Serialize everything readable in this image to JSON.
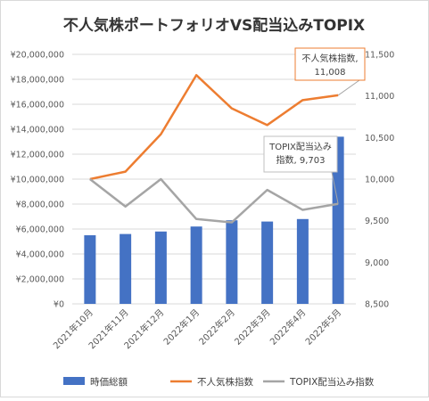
{
  "chart_data": {
    "type": "bar+line",
    "title": "不人気株ポートフォリオVS配当込みTOPIX",
    "categories": [
      "2021年10月",
      "2021年11月",
      "2021年12月",
      "2022年1月",
      "2022年2月",
      "2022年3月",
      "2022年4月",
      "2022年5月"
    ],
    "bar_series": {
      "name": "時価総額",
      "color": "#4472c4",
      "axis": "left",
      "values": [
        5500000,
        5600000,
        5800000,
        6200000,
        6700000,
        6600000,
        6800000,
        13400000
      ]
    },
    "line_series": [
      {
        "name": "不人気株指数",
        "color": "#ed7d31",
        "axis": "right",
        "values": [
          10000,
          10090,
          10540,
          11250,
          10850,
          10650,
          10950,
          11008
        ]
      },
      {
        "name": "TOPIX配当込み指数",
        "color": "#a5a5a5",
        "axis": "right",
        "values": [
          10000,
          9670,
          10000,
          9520,
          9480,
          9870,
          9630,
          9703
        ]
      }
    ],
    "left_axis": {
      "min": 0,
      "max": 20000000,
      "step": 2000000,
      "tick_labels": [
        "¥0",
        "¥2,000,000",
        "¥4,000,000",
        "¥6,000,000",
        "¥8,000,000",
        "¥10,000,000",
        "¥12,000,000",
        "¥14,000,000",
        "¥16,000,000",
        "¥18,000,000",
        "¥20,000,000"
      ]
    },
    "right_axis": {
      "min": 8500,
      "max": 11500,
      "step": 500,
      "tick_labels": [
        "8,500",
        "9,000",
        "9,500",
        "10,000",
        "10,500",
        "11,000",
        "11,500"
      ]
    },
    "grid": true,
    "legend_position": "bottom",
    "annotations": [
      {
        "series": "不人気株指数",
        "index": 7,
        "line1": "不人気株指数,",
        "line2": "11,008"
      },
      {
        "series": "TOPIX配当込み指数",
        "index": 7,
        "line1": "TOPIX配当込み",
        "line2": "指数, 9,703"
      }
    ]
  }
}
